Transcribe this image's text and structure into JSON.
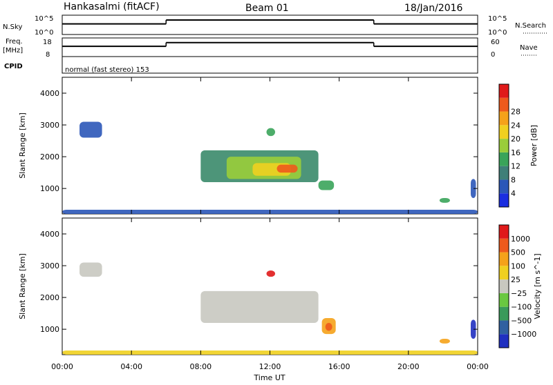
{
  "header": {
    "station": "Hankasalmi (fitACF)",
    "beam": "Beam 01",
    "date": "18/Jan/2016"
  },
  "strips": {
    "nsky": {
      "label": "N.Sky",
      "left_ticks": [
        "10^5",
        "10^0"
      ],
      "right_ticks": [
        "10^5",
        "10^0"
      ],
      "right_label": "N.Search",
      "segments": [
        {
          "x0": 0,
          "x1": 6,
          "value": 0.55
        },
        {
          "x0": 6,
          "x1": 18,
          "value": 0.75
        },
        {
          "x0": 18,
          "x1": 24,
          "value": 0.55
        }
      ]
    },
    "freq": {
      "label_line1": "Freq.",
      "label_line2": "[MHz]",
      "left_ticks": [
        "18",
        "8"
      ],
      "right_ticks": [
        "60",
        "0"
      ],
      "right_label": "Nave",
      "segments": [
        {
          "x0": 0,
          "x1": 6,
          "value": 0.55
        },
        {
          "x0": 6,
          "x1": 18,
          "value": 0.75
        },
        {
          "x0": 18,
          "x1": 24,
          "value": 0.55
        }
      ]
    },
    "cpid": {
      "label": "CPID",
      "text": "normal (fast stereo) 153"
    }
  },
  "chart_data": [
    {
      "type": "heatmap",
      "title": "",
      "xlabel": "Time UT",
      "ylabel": "Slant Range [km]",
      "xlim": [
        0,
        24
      ],
      "ylim": [
        200,
        4500
      ],
      "x_ticks": [
        "00:00",
        "04:00",
        "08:00",
        "12:00",
        "16:00",
        "20:00",
        "00:00"
      ],
      "y_ticks": [
        1000,
        2000,
        3000,
        4000
      ],
      "colorbar": {
        "label": "Power [dB]",
        "ticks": [
          "4",
          "8",
          "12",
          "16",
          "20",
          "24",
          "28"
        ],
        "colors": [
          "#1a2ee0",
          "#2b57b8",
          "#3f7f78",
          "#3aa45a",
          "#9acd3a",
          "#f0d020",
          "#f5a21a",
          "#ee5a1c",
          "#e01a1a"
        ]
      },
      "regions": [
        {
          "t0": 8.0,
          "t1": 14.8,
          "r0": 1200,
          "r1": 2200,
          "color": "#3a8a6a"
        },
        {
          "t0": 9.5,
          "t1": 13.8,
          "r0": 1300,
          "r1": 2000,
          "color": "#9acd3a"
        },
        {
          "t0": 11.0,
          "t1": 13.2,
          "r0": 1400,
          "r1": 1800,
          "color": "#f0d020"
        },
        {
          "t0": 12.4,
          "t1": 13.6,
          "r0": 1500,
          "r1": 1750,
          "color": "#ee5a1c"
        },
        {
          "t0": 14.8,
          "t1": 15.7,
          "r0": 950,
          "r1": 1250,
          "color": "#3aa45a"
        },
        {
          "t0": 1.0,
          "t1": 2.3,
          "r0": 2600,
          "r1": 3100,
          "color": "#2b57b8"
        },
        {
          "t0": 11.8,
          "t1": 12.3,
          "r0": 2650,
          "r1": 2900,
          "color": "#3aa45a"
        },
        {
          "t0": 0.0,
          "t1": 24.0,
          "r0": 200,
          "r1": 330,
          "color": "#2b57b8"
        },
        {
          "t0": 21.8,
          "t1": 22.4,
          "r0": 550,
          "r1": 700,
          "color": "#3aa45a"
        },
        {
          "t0": 23.6,
          "t1": 23.9,
          "r0": 700,
          "r1": 1300,
          "color": "#2b57b8"
        }
      ]
    },
    {
      "type": "heatmap",
      "title": "",
      "xlabel": "Time UT",
      "ylabel": "Slant Range [km]",
      "xlim": [
        0,
        24
      ],
      "ylim": [
        200,
        4500
      ],
      "x_ticks": [
        "00:00",
        "04:00",
        "08:00",
        "12:00",
        "16:00",
        "20:00",
        "00:00"
      ],
      "y_ticks": [
        1000,
        2000,
        3000,
        4000
      ],
      "colorbar": {
        "label": "Velocity [m s^-1]",
        "ticks": [
          "1000",
          "500",
          "100",
          "25",
          "−25",
          "−100",
          "−500",
          "−1000"
        ],
        "colors": [
          "#2030c0",
          "#3060a0",
          "#3a9a5a",
          "#6ac840",
          "#c8c8c0",
          "#f0d020",
          "#f5a21a",
          "#ee5a1c",
          "#e01a1a"
        ]
      },
      "regions": [
        {
          "t0": 8.0,
          "t1": 14.8,
          "r0": 1200,
          "r1": 2200,
          "color": "#c8c8c0"
        },
        {
          "t0": 15.0,
          "t1": 15.8,
          "r0": 850,
          "r1": 1350,
          "color": "#f5a21a"
        },
        {
          "t0": 15.2,
          "t1": 15.6,
          "r0": 950,
          "r1": 1200,
          "color": "#ee5a1c"
        },
        {
          "t0": 1.0,
          "t1": 2.3,
          "r0": 2650,
          "r1": 3100,
          "color": "#c8c8c0"
        },
        {
          "t0": 11.8,
          "t1": 12.3,
          "r0": 2650,
          "r1": 2850,
          "color": "#e01a1a"
        },
        {
          "t0": 0.0,
          "t1": 24.0,
          "r0": 200,
          "r1": 330,
          "color": "#f0d020"
        },
        {
          "t0": 21.8,
          "t1": 22.4,
          "r0": 550,
          "r1": 700,
          "color": "#f5a21a"
        },
        {
          "t0": 23.6,
          "t1": 23.9,
          "r0": 700,
          "r1": 1300,
          "color": "#2030c0"
        }
      ]
    }
  ]
}
